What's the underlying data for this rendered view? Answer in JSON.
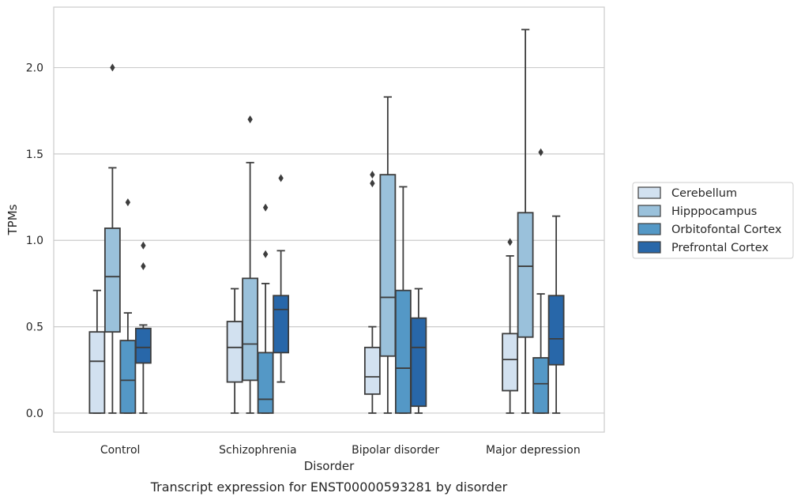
{
  "caption": "Transcript expression for ENST00000593281 by disorder",
  "chart_data": {
    "type": "box",
    "title": "",
    "xlabel": "Disorder",
    "ylabel": "TPMs",
    "ylim": [
      -0.11,
      2.35
    ],
    "yticks": [
      0.0,
      0.5,
      1.0,
      1.5,
      2.0
    ],
    "ytick_labels": [
      "0.0",
      "0.5",
      "1.0",
      "1.5",
      "2.0"
    ],
    "grid": "horizontal",
    "legend_position": "right",
    "categories": [
      "Control",
      "Schizophrenia",
      "Bipolar disorder",
      "Major depression"
    ],
    "series": [
      {
        "name": "Cerebellum",
        "color": "#d2e1f0",
        "boxes": [
          {
            "whisker_low": 0.0,
            "q1": 0.0,
            "median": 0.3,
            "q3": 0.47,
            "whisker_high": 0.71,
            "outliers": []
          },
          {
            "whisker_low": 0.0,
            "q1": 0.18,
            "median": 0.38,
            "q3": 0.53,
            "whisker_high": 0.72,
            "outliers": []
          },
          {
            "whisker_low": 0.0,
            "q1": 0.11,
            "median": 0.21,
            "q3": 0.38,
            "whisker_high": 0.5,
            "outliers": [
              1.33,
              1.38
            ]
          },
          {
            "whisker_low": 0.0,
            "q1": 0.13,
            "median": 0.31,
            "q3": 0.46,
            "whisker_high": 0.91,
            "outliers": [
              0.99
            ]
          }
        ]
      },
      {
        "name": "Hipppocampus",
        "color": "#9ac1db",
        "boxes": [
          {
            "whisker_low": 0.0,
            "q1": 0.47,
            "median": 0.79,
            "q3": 1.07,
            "whisker_high": 1.42,
            "outliers": [
              2.0
            ]
          },
          {
            "whisker_low": 0.0,
            "q1": 0.19,
            "median": 0.4,
            "q3": 0.78,
            "whisker_high": 1.45,
            "outliers": [
              1.7
            ]
          },
          {
            "whisker_low": 0.0,
            "q1": 0.33,
            "median": 0.67,
            "q3": 1.38,
            "whisker_high": 1.83,
            "outliers": []
          },
          {
            "whisker_low": 0.0,
            "q1": 0.44,
            "median": 0.85,
            "q3": 1.16,
            "whisker_high": 2.22,
            "outliers": []
          }
        ]
      },
      {
        "name": "Orbitofontal Cortex",
        "color": "#5498c6",
        "boxes": [
          {
            "whisker_low": 0.0,
            "q1": 0.0,
            "median": 0.19,
            "q3": 0.42,
            "whisker_high": 0.58,
            "outliers": [
              1.22
            ]
          },
          {
            "whisker_low": 0.0,
            "q1": 0.0,
            "median": 0.08,
            "q3": 0.35,
            "whisker_high": 0.75,
            "outliers": [
              0.92,
              1.19
            ]
          },
          {
            "whisker_low": 0.0,
            "q1": 0.0,
            "median": 0.26,
            "q3": 0.71,
            "whisker_high": 1.31,
            "outliers": []
          },
          {
            "whisker_low": 0.0,
            "q1": 0.0,
            "median": 0.17,
            "q3": 0.32,
            "whisker_high": 0.69,
            "outliers": [
              1.51
            ]
          }
        ]
      },
      {
        "name": "Prefrontal Cortex",
        "color": "#2867a9",
        "boxes": [
          {
            "whisker_low": 0.0,
            "q1": 0.29,
            "median": 0.38,
            "q3": 0.49,
            "whisker_high": 0.51,
            "outliers": [
              0.85,
              0.97
            ]
          },
          {
            "whisker_low": 0.18,
            "q1": 0.35,
            "median": 0.6,
            "q3": 0.68,
            "whisker_high": 0.94,
            "outliers": [
              1.36
            ]
          },
          {
            "whisker_low": 0.0,
            "q1": 0.04,
            "median": 0.38,
            "q3": 0.55,
            "whisker_high": 0.72,
            "outliers": []
          },
          {
            "whisker_low": 0.0,
            "q1": 0.28,
            "median": 0.43,
            "q3": 0.68,
            "whisker_high": 1.14,
            "outliers": []
          }
        ]
      }
    ]
  }
}
